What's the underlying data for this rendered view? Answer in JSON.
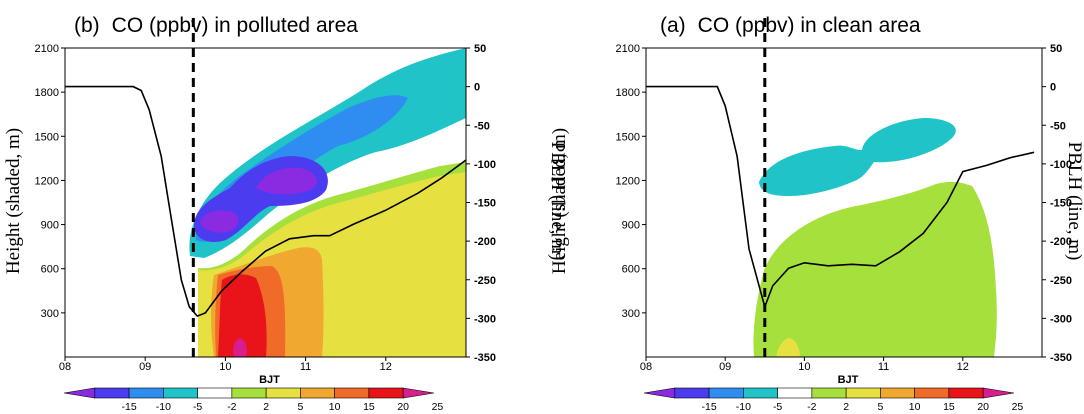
{
  "chart_data": [
    {
      "type": "contour",
      "panel_label": "(b)",
      "title": "CO (ppbv) in polluted area",
      "xlabel": "BJT",
      "ylabel_left": "Height (shaded, m)",
      "ylabel_right": "PBLH (line, m)",
      "xticks": [
        "08",
        "09",
        "10",
        "11",
        "12"
      ],
      "yticks_left": [
        "300",
        "600",
        "900",
        "1200",
        "1500",
        "1800",
        "2100"
      ],
      "yticks_right": [
        "50",
        "0",
        "-50",
        "-100",
        "-150",
        "-200",
        "-250",
        "-300",
        "-350"
      ],
      "xlim": [
        8,
        13
      ],
      "ylim_left": [
        0,
        2100
      ],
      "ylim_right": [
        -350,
        50
      ],
      "vline_x": 9.6,
      "line_series": {
        "name": "PBLH",
        "x": [
          8.0,
          8.85,
          8.95,
          9.05,
          9.2,
          9.3,
          9.45,
          9.55,
          9.65,
          9.75,
          9.95,
          10.2,
          10.5,
          10.8,
          11.1,
          11.3,
          11.6,
          12.0,
          12.4,
          12.7,
          13.0
        ],
        "y": [
          0,
          0,
          -5,
          -30,
          -90,
          -155,
          -250,
          -285,
          -297,
          -293,
          -265,
          -240,
          -213,
          -197,
          -193,
          -193,
          -178,
          -160,
          -138,
          -118,
          -95
        ]
      }
    },
    {
      "type": "contour",
      "panel_label": "(a)",
      "title": "CO (ppbv) in clean area",
      "xlabel": "BJT",
      "ylabel_left": "Height (shaded, m)",
      "ylabel_right": "PBLH (line, m)",
      "xticks": [
        "08",
        "09",
        "10",
        "11",
        "12"
      ],
      "yticks_left": [
        "300",
        "600",
        "900",
        "1200",
        "1500",
        "1800",
        "2100"
      ],
      "yticks_right": [
        "50",
        "0",
        "-50",
        "-100",
        "-150",
        "-200",
        "-250",
        "-300",
        "-350"
      ],
      "xlim": [
        8,
        13
      ],
      "ylim_left": [
        0,
        2100
      ],
      "ylim_right": [
        -350,
        50
      ],
      "vline_x": 9.5,
      "line_series": {
        "name": "PBLH",
        "x": [
          8.0,
          8.9,
          9.0,
          9.15,
          9.3,
          9.5,
          9.6,
          9.8,
          10.0,
          10.3,
          10.6,
          10.9,
          11.2,
          11.5,
          11.8,
          12.0,
          12.3,
          12.6,
          12.9
        ],
        "y": [
          0,
          0,
          -25,
          -90,
          -210,
          -285,
          -258,
          -235,
          -228,
          -232,
          -230,
          -232,
          -214,
          -190,
          -150,
          -110,
          -102,
          -92,
          -85
        ]
      }
    }
  ],
  "colorbar": {
    "ticks": [
      "-15",
      "-10",
      "-5",
      "-2",
      "2",
      "5",
      "10",
      "15",
      "20",
      "25"
    ],
    "colors": [
      "#8a2be2",
      "#4b3cf0",
      "#2f8cf0",
      "#20c4c8",
      "#ffffff",
      "#a6e03c",
      "#e6e040",
      "#f0a830",
      "#f06a28",
      "#e8141a",
      "#d81e8c"
    ]
  }
}
